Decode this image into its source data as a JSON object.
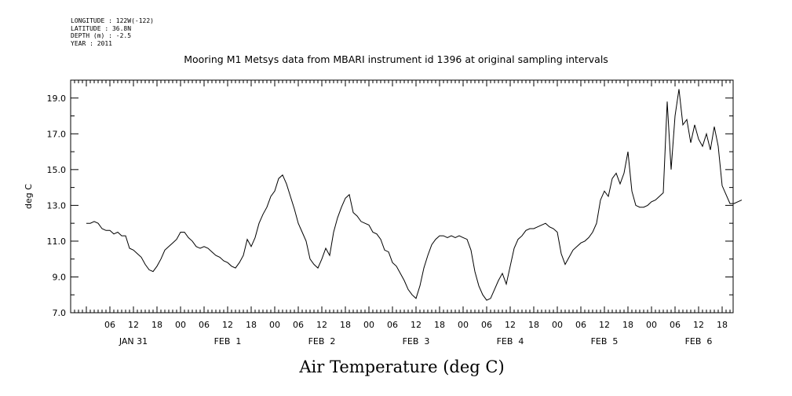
{
  "meta": {
    "lines": [
      "LONGITUDE : 122W(-122)",
      "LATITUDE : 36.8N",
      "DEPTH (m) : -2.5",
      "YEAR : 2011"
    ]
  },
  "chart_data": {
    "type": "line",
    "title": "Mooring M1 Metsys data from MBARI instrument id 1396 at original sampling intervals",
    "xlabel": "Air Temperature (deg C)",
    "ylabel": "deg C",
    "ylim": [
      7.0,
      20.0
    ],
    "yticks": [
      "7.0",
      "9.0",
      "11.0",
      "13.0",
      "15.0",
      "17.0",
      "19.0"
    ],
    "xlim_hours": [
      0,
      168
    ],
    "hour_tick_labels": [
      "06",
      "12",
      "18",
      "00"
    ],
    "day_labels": [
      "JAN 31",
      "FEB  1",
      "FEB  2",
      "FEB  3",
      "FEB  4",
      "FEB  5",
      "FEB  6"
    ],
    "series": [
      {
        "x_hours": [
          0,
          1,
          2,
          3,
          4,
          5,
          6,
          7,
          8,
          9,
          10,
          11,
          12,
          13,
          14,
          15,
          16,
          17,
          18,
          19,
          20,
          21,
          22,
          23,
          24,
          25,
          26,
          27,
          28,
          29,
          30,
          31,
          32,
          33,
          34,
          35,
          36,
          37,
          38,
          39,
          40,
          41,
          42,
          43,
          44,
          45,
          46,
          47,
          48,
          49,
          50,
          51,
          52,
          53,
          54,
          55,
          56,
          57,
          58,
          59,
          60,
          61,
          62,
          63,
          64,
          65,
          66,
          67,
          68,
          69,
          70,
          71,
          72,
          73,
          74,
          75,
          76,
          77,
          78,
          79,
          80,
          81,
          82,
          83,
          84,
          85,
          86,
          87,
          88,
          89,
          90,
          91,
          92,
          93,
          94,
          95,
          96,
          97,
          98,
          99,
          100,
          101,
          102,
          103,
          104,
          105,
          106,
          107,
          108,
          109,
          110,
          111,
          112,
          113,
          114,
          115,
          116,
          117,
          118,
          119,
          120,
          121,
          122,
          123,
          124,
          125,
          126,
          127,
          128,
          129,
          130,
          131,
          132,
          133,
          134,
          135,
          136,
          137,
          138,
          139,
          140,
          141,
          142,
          143,
          144,
          145,
          146,
          147,
          148,
          149,
          150,
          151,
          152,
          153,
          154,
          155,
          156,
          157,
          158,
          159,
          160,
          161,
          162,
          163,
          164,
          165,
          166,
          167
        ],
        "values": [
          12.0,
          12.0,
          12.1,
          12.0,
          11.7,
          11.6,
          11.6,
          11.4,
          11.5,
          11.3,
          11.3,
          10.6,
          10.5,
          10.3,
          10.1,
          9.7,
          9.4,
          9.3,
          9.6,
          10.0,
          10.5,
          10.7,
          10.9,
          11.1,
          11.5,
          11.5,
          11.2,
          11.0,
          10.7,
          10.6,
          10.7,
          10.6,
          10.4,
          10.2,
          10.1,
          9.9,
          9.8,
          9.6,
          9.5,
          9.8,
          10.2,
          11.1,
          10.7,
          11.2,
          12.0,
          12.5,
          12.9,
          13.5,
          13.8,
          14.5,
          14.7,
          14.2,
          13.5,
          12.8,
          12.0,
          11.5,
          11.0,
          10.0,
          9.7,
          9.5,
          10.0,
          10.6,
          10.2,
          11.5,
          12.3,
          12.9,
          13.4,
          13.6,
          12.6,
          12.4,
          12.1,
          12.0,
          11.9,
          11.5,
          11.4,
          11.1,
          10.5,
          10.4,
          9.8,
          9.6,
          9.2,
          8.8,
          8.3,
          8.0,
          7.8,
          8.5,
          9.5,
          10.2,
          10.8,
          11.1,
          11.3,
          11.3,
          11.2,
          11.3,
          11.2,
          11.3,
          11.2,
          11.1,
          10.5,
          9.3,
          8.5,
          8.0,
          7.7,
          7.8,
          8.3,
          8.8,
          9.2,
          8.6,
          9.6,
          10.6,
          11.1,
          11.3,
          11.6,
          11.7,
          11.7,
          11.8,
          11.9,
          12.0,
          11.8,
          11.7,
          11.5,
          10.3,
          9.7,
          10.1,
          10.5,
          10.7,
          10.9,
          11.0,
          11.2,
          11.5,
          12.0,
          13.3,
          13.8,
          13.5,
          14.5,
          14.8,
          14.2,
          14.8,
          16.0,
          13.8,
          13.0,
          12.9,
          12.9,
          13.0,
          13.2,
          13.3,
          13.5,
          13.7,
          18.8,
          15.0,
          18.0,
          19.5,
          17.5,
          17.8,
          16.5,
          17.5,
          16.7,
          16.3,
          17.0,
          16.1,
          17.4,
          16.3,
          14.1,
          13.6,
          13.1,
          13.1,
          13.2,
          13.3
        ]
      }
    ]
  }
}
